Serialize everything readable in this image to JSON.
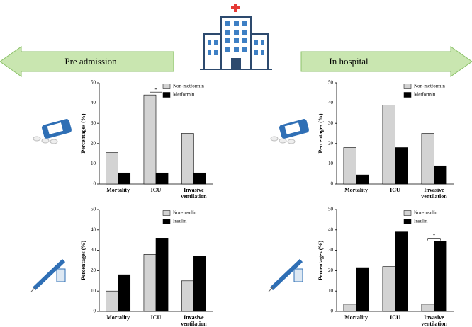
{
  "header": {
    "left": "Pre admission",
    "right": "In hospital"
  },
  "chart_data": [
    {
      "type": "bar",
      "ylabel": "Percentages (%)",
      "categories": [
        "Mortality",
        "ICU",
        "Invasive ventilation"
      ],
      "series": [
        {
          "name": "Non-metformin",
          "color": "#d3d3d3",
          "values": [
            15.5,
            44,
            25
          ]
        },
        {
          "name": "Metformin",
          "color": "#000000",
          "values": [
            5.5,
            5.5,
            5.5
          ]
        }
      ],
      "ylim": [
        0,
        50
      ],
      "yticks": [
        0,
        10,
        20,
        30,
        40,
        50
      ],
      "legend": "top-right",
      "annotations": [
        {
          "text": "*",
          "category": "ICU"
        }
      ]
    },
    {
      "type": "bar",
      "ylabel": "Percentages (%)",
      "categories": [
        "Mortality",
        "ICU",
        "Invasive ventilation"
      ],
      "series": [
        {
          "name": "Non-metformin",
          "color": "#d3d3d3",
          "values": [
            18,
            39,
            25
          ]
        },
        {
          "name": "Metformin",
          "color": "#000000",
          "values": [
            4.5,
            18,
            9
          ]
        }
      ],
      "ylim": [
        0,
        50
      ],
      "yticks": [
        0,
        10,
        20,
        30,
        40,
        50
      ],
      "legend": "top-right"
    },
    {
      "type": "bar",
      "ylabel": "Percentages (%)",
      "categories": [
        "Mortality",
        "ICU",
        "Invasive ventilation"
      ],
      "series": [
        {
          "name": "Non-insulin",
          "color": "#d3d3d3",
          "values": [
            10,
            28,
            15
          ]
        },
        {
          "name": "Insulin",
          "color": "#000000",
          "values": [
            18,
            36,
            27
          ]
        }
      ],
      "ylim": [
        0,
        50
      ],
      "yticks": [
        0,
        10,
        20,
        30,
        40,
        50
      ],
      "legend": "top-right"
    },
    {
      "type": "bar",
      "ylabel": "Percentages (%)",
      "categories": [
        "Mortality",
        "ICU",
        "Invasive ventilation"
      ],
      "series": [
        {
          "name": "Non-insulin",
          "color": "#d3d3d3",
          "values": [
            3.5,
            22,
            3.5
          ]
        },
        {
          "name": "Insulin",
          "color": "#000000",
          "values": [
            21.5,
            39,
            34.5
          ]
        }
      ],
      "ylim": [
        0,
        50
      ],
      "yticks": [
        0,
        10,
        20,
        30,
        40,
        50
      ],
      "legend": "top-right",
      "annotations": [
        {
          "text": "*",
          "category": "Invasive ventilation"
        }
      ]
    }
  ]
}
